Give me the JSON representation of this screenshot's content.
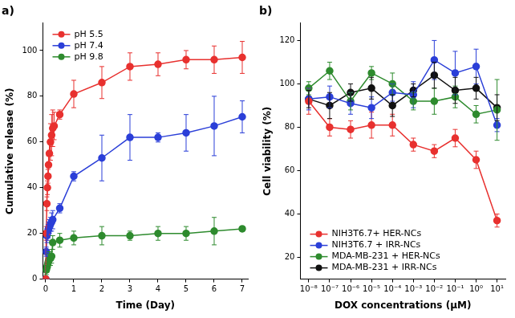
{
  "chart_data": [
    {
      "type": "line",
      "title": "a)",
      "x_label": "Time (Day)",
      "y_label": "Cumulative release (%)",
      "xlim": [
        -0.1,
        7.2
      ],
      "xticks": [
        0,
        1,
        2,
        3,
        4,
        5,
        6,
        7
      ],
      "ylim": [
        0,
        112
      ],
      "yticks": [
        0,
        20,
        40,
        60,
        80,
        100
      ],
      "grid": false,
      "legend": "upper left",
      "marker": "circle",
      "series": [
        {
          "name": "pH 5.5",
          "color": "#e8312f",
          "x": [
            0,
            0.02,
            0.04,
            0.06,
            0.08,
            0.1,
            0.13,
            0.17,
            0.21,
            0.25,
            0.3,
            0.5,
            1,
            2,
            3,
            4,
            5,
            6,
            7
          ],
          "values": [
            0,
            20,
            33,
            40,
            45,
            50,
            55,
            60,
            63,
            66,
            67,
            72,
            81,
            86,
            93,
            94,
            96,
            96,
            97
          ],
          "errors": [
            0,
            3,
            3,
            3,
            3,
            4,
            5,
            8,
            9,
            8,
            6,
            2,
            6,
            7,
            6,
            5,
            4,
            6,
            7
          ]
        },
        {
          "name": "pH 7.4",
          "color": "#2b3fd8",
          "x": [
            0,
            0.02,
            0.04,
            0.06,
            0.08,
            0.1,
            0.13,
            0.17,
            0.21,
            0.25,
            0.5,
            1,
            2,
            3,
            4,
            5,
            6,
            7
          ],
          "values": [
            0,
            12,
            19,
            20,
            21,
            22,
            23,
            24,
            25,
            26,
            31,
            45,
            53,
            62,
            62,
            64,
            67,
            71
          ],
          "errors": [
            0,
            2,
            3,
            3,
            3,
            3,
            3,
            3,
            4,
            4,
            2,
            2,
            10,
            10,
            2,
            8,
            13,
            7
          ]
        },
        {
          "name": "pH 9.8",
          "color": "#2e8b2e",
          "x": [
            0,
            0.02,
            0.04,
            0.06,
            0.08,
            0.1,
            0.13,
            0.17,
            0.21,
            0.25,
            0.5,
            1,
            2,
            3,
            4,
            5,
            6,
            7
          ],
          "values": [
            0,
            4,
            5,
            6,
            7,
            8,
            9,
            9,
            10,
            16,
            17,
            18,
            19,
            19,
            20,
            20,
            21,
            22
          ],
          "errors": [
            0,
            2,
            2,
            2,
            2,
            3,
            3,
            3,
            3,
            3,
            3,
            3,
            4,
            2,
            3,
            3,
            6,
            1
          ]
        }
      ]
    },
    {
      "type": "line",
      "title": "b)",
      "x_label": "DOX concentrations (μM)",
      "y_label": "Cell viability (%)",
      "log": "x",
      "x": [
        1e-08,
        1e-07,
        1e-06,
        1e-05,
        0.0001,
        0.001,
        0.01,
        0.1,
        1,
        10
      ],
      "xlim": [
        4e-09,
        25
      ],
      "xticks": [
        {
          "value": 1e-08,
          "label": "10⁻⁸"
        },
        {
          "value": 1e-07,
          "label": "10⁻⁷"
        },
        {
          "value": 1e-06,
          "label": "10⁻⁶"
        },
        {
          "value": 1e-05,
          "label": "10⁻⁵"
        },
        {
          "value": 0.0001,
          "label": "10⁻⁴"
        },
        {
          "value": 0.001,
          "label": "10⁻³"
        },
        {
          "value": 0.01,
          "label": "10⁻²"
        },
        {
          "value": 0.1,
          "label": "10⁻¹"
        },
        {
          "value": 1,
          "label": "10⁰"
        },
        {
          "value": 10,
          "label": "10¹"
        }
      ],
      "ylim": [
        10,
        128
      ],
      "yticks": [
        20,
        40,
        60,
        80,
        100,
        120
      ],
      "grid": false,
      "legend": "lower left",
      "marker": "circle",
      "series": [
        {
          "name": "NIH3T6.7+ HER-NCs",
          "color": "#e8312f",
          "values": [
            92,
            80,
            79,
            81,
            81,
            72,
            69,
            75,
            65,
            37
          ],
          "errors": [
            6,
            4,
            4,
            6,
            5,
            3,
            3,
            4,
            4,
            3
          ]
        },
        {
          "name": "NIH3T6.7 + IRR-NCs",
          "color": "#2b3fd8",
          "values": [
            93,
            94,
            91,
            89,
            96,
            95,
            111,
            105,
            108,
            81
          ],
          "errors": [
            5,
            5,
            5,
            5,
            4,
            6,
            9,
            10,
            8,
            3
          ]
        },
        {
          "name": "MDA-MB-231 + HER-NCs",
          "color": "#2e8b2e",
          "values": [
            98,
            106,
            92,
            105,
            100,
            92,
            92,
            94,
            86,
            88
          ],
          "errors": [
            3,
            4,
            4,
            3,
            5,
            4,
            6,
            5,
            4,
            14
          ]
        },
        {
          "name": "MDA-MB-231 + IRR-NCs",
          "color": "#111111",
          "values": [
            93,
            90,
            96,
            98,
            90,
            97,
            104,
            97,
            98,
            89
          ],
          "errors": [
            4,
            6,
            4,
            5,
            5,
            3,
            6,
            6,
            5,
            6
          ]
        }
      ]
    }
  ]
}
